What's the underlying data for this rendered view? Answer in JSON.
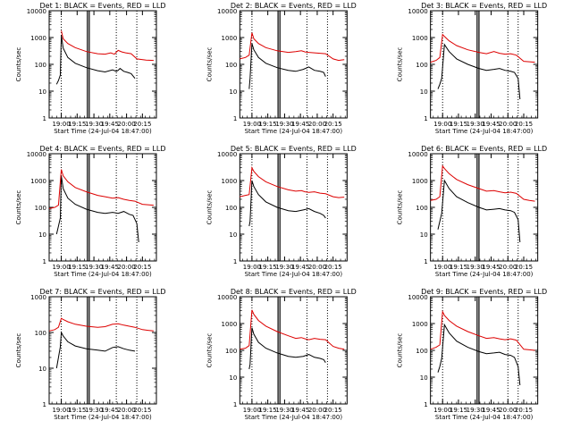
{
  "layout": {
    "columns": 3,
    "rows": 3
  },
  "chart_data": [
    {
      "type": "line",
      "yscale": "log",
      "ylim": [
        1,
        10000
      ],
      "title": "Det 1: BLACK = Events, RED = LLD",
      "xlabel": "Start Time (24-Jul-04 18:47:00)",
      "ylabel": "Counts/sec",
      "x_ticks": [
        "19:00",
        "19:15",
        "19:30",
        "19:45",
        "20:00",
        "20:15"
      ],
      "y_ticks": [
        "1",
        "10",
        "100",
        "1000",
        "10000"
      ],
      "series": [
        {
          "color": "#000000",
          "x": [
            8,
            10,
            12,
            13,
            15,
            20,
            28,
            40,
            52,
            60,
            68,
            72,
            74,
            76,
            80,
            84,
            88,
            92
          ],
          "y": [
            18,
            25,
            40,
            1200,
            400,
            180,
            110,
            75,
            58,
            52,
            62,
            55,
            60,
            70,
            55,
            50,
            45,
            30
          ]
        },
        {
          "color": "#dd0000",
          "x": [
            13,
            15,
            20,
            28,
            40,
            52,
            60,
            66,
            70,
            74,
            78,
            82,
            88,
            94,
            104,
            112
          ],
          "y": [
            1800,
            900,
            600,
            420,
            300,
            250,
            240,
            270,
            240,
            330,
            290,
            270,
            250,
            160,
            145,
            140
          ]
        }
      ],
      "vlines_solid": [
        41,
        43
      ],
      "vlines_dotted": [
        13,
        72,
        94
      ]
    },
    {
      "type": "line",
      "yscale": "log",
      "ylim": [
        1,
        10000
      ],
      "title": "Det 2: BLACK = Events, RED = LLD",
      "xlabel": "Start Time (24-Jul-04 18:47:00)",
      "ylabel": "Counts/sec",
      "x_ticks": [
        "19:00",
        "19:15",
        "19:30",
        "19:45",
        "20:00",
        "20:15"
      ],
      "y_ticks": [
        "1",
        "10",
        "100",
        "1000",
        "10000"
      ],
      "series": [
        {
          "color": "#000000",
          "x": [
            10,
            11,
            13,
            15,
            20,
            28,
            40,
            52,
            60,
            68,
            74,
            80,
            86,
            90,
            92
          ],
          "y": [
            12,
            30,
            600,
            350,
            180,
            110,
            75,
            60,
            55,
            65,
            80,
            60,
            55,
            50,
            35
          ]
        },
        {
          "color": "#dd0000",
          "x": [
            0,
            6,
            10,
            13,
            15,
            20,
            28,
            40,
            52,
            60,
            66,
            70,
            74,
            80,
            86,
            92,
            100,
            106,
            112
          ],
          "y": [
            160,
            180,
            220,
            1500,
            900,
            600,
            420,
            320,
            280,
            300,
            320,
            290,
            280,
            270,
            260,
            250,
            160,
            140,
            150
          ]
        }
      ],
      "vlines_solid": [
        41,
        43
      ],
      "vlines_dotted": [
        13,
        72,
        94
      ]
    },
    {
      "type": "line",
      "yscale": "log",
      "ylim": [
        1,
        10000
      ],
      "title": "Det 3: BLACK = Events, RED = LLD",
      "xlabel": "Start Time (24-Jul-04 18:47:00)",
      "ylabel": "Counts/sec",
      "x_ticks": [
        "19:00",
        "19:15",
        "19:30",
        "19:45",
        "20:00",
        "20:15"
      ],
      "y_ticks": [
        "1",
        "10",
        "100",
        "1000",
        "10000"
      ],
      "series": [
        {
          "color": "#000000",
          "x": [
            8,
            10,
            12,
            15,
            20,
            28,
            40,
            52,
            60,
            68,
            74,
            80,
            86,
            90,
            94,
            96
          ],
          "y": [
            12,
            18,
            30,
            550,
            300,
            160,
            100,
            70,
            60,
            65,
            70,
            60,
            55,
            50,
            30,
            5
          ]
        },
        {
          "color": "#dd0000",
          "x": [
            0,
            6,
            10,
            13,
            15,
            20,
            28,
            40,
            52,
            60,
            68,
            74,
            80,
            86,
            92,
            100,
            106,
            112
          ],
          "y": [
            120,
            140,
            180,
            1300,
            1100,
            750,
            500,
            350,
            280,
            250,
            300,
            260,
            240,
            250,
            220,
            130,
            125,
            120
          ]
        }
      ],
      "vlines_solid": [
        50,
        52
      ],
      "vlines_dotted": [
        13,
        83,
        94
      ]
    },
    {
      "type": "line",
      "yscale": "log",
      "ylim": [
        1,
        10000
      ],
      "title": "Det 4: BLACK = Events, RED = LLD",
      "xlabel": "Start Time (24-Jul-04 18:47:00)",
      "ylabel": "Counts/sec",
      "x_ticks": [
        "19:00",
        "19:15",
        "19:30",
        "19:45",
        "20:00",
        "20:15"
      ],
      "y_ticks": [
        "1",
        "10",
        "100",
        "1000",
        "10000"
      ],
      "series": [
        {
          "color": "#000000",
          "x": [
            8,
            10,
            12,
            13,
            15,
            20,
            28,
            40,
            52,
            60,
            68,
            74,
            80,
            86,
            90,
            94,
            96
          ],
          "y": [
            10,
            20,
            40,
            1500,
            500,
            220,
            130,
            85,
            65,
            60,
            65,
            60,
            70,
            55,
            50,
            25,
            5
          ]
        },
        {
          "color": "#dd0000",
          "x": [
            0,
            6,
            10,
            13,
            15,
            20,
            28,
            40,
            52,
            60,
            68,
            74,
            80,
            86,
            92,
            100,
            106,
            112
          ],
          "y": [
            90,
            100,
            120,
            2600,
            1500,
            900,
            550,
            380,
            280,
            250,
            220,
            230,
            200,
            180,
            170,
            130,
            125,
            120
          ]
        }
      ],
      "vlines_solid": [
        41,
        43
      ],
      "vlines_dotted": [
        13,
        72,
        94
      ]
    },
    {
      "type": "line",
      "yscale": "log",
      "ylim": [
        1,
        10000
      ],
      "title": "Det 5: BLACK = Events, RED = LLD",
      "xlabel": "Start Time (24-Jul-04 18:47:00)",
      "ylabel": "Counts/sec",
      "x_ticks": [
        "19:00",
        "19:15",
        "19:30",
        "19:45",
        "20:00",
        "20:15"
      ],
      "y_ticks": [
        "1",
        "10",
        "100",
        "1000",
        "10000"
      ],
      "series": [
        {
          "color": "#000000",
          "x": [
            10,
            11,
            13,
            15,
            20,
            28,
            40,
            52,
            60,
            68,
            74,
            80,
            86,
            90,
            92
          ],
          "y": [
            20,
            30,
            1000,
            600,
            300,
            160,
            100,
            75,
            70,
            80,
            90,
            70,
            60,
            50,
            40
          ]
        },
        {
          "color": "#dd0000",
          "x": [
            0,
            6,
            10,
            13,
            15,
            20,
            28,
            40,
            52,
            60,
            66,
            70,
            74,
            80,
            86,
            92,
            100,
            106,
            112
          ],
          "y": [
            250,
            280,
            300,
            3000,
            2200,
            1400,
            900,
            600,
            450,
            400,
            420,
            380,
            360,
            380,
            340,
            320,
            250,
            230,
            240
          ]
        }
      ],
      "vlines_solid": [
        41,
        43
      ],
      "vlines_dotted": [
        13,
        72,
        94
      ]
    },
    {
      "type": "line",
      "yscale": "log",
      "ylim": [
        1,
        10000
      ],
      "title": "Det 6: BLACK = Events, RED = LLD",
      "xlabel": "Start Time (24-Jul-04 18:47:00)",
      "ylabel": "Counts/sec",
      "x_ticks": [
        "19:00",
        "19:15",
        "19:30",
        "19:45",
        "20:00",
        "20:15"
      ],
      "y_ticks": [
        "1",
        "10",
        "100",
        "1000",
        "10000"
      ],
      "series": [
        {
          "color": "#000000",
          "x": [
            8,
            10,
            12,
            15,
            20,
            28,
            40,
            52,
            60,
            68,
            74,
            80,
            86,
            90,
            94,
            96
          ],
          "y": [
            15,
            30,
            60,
            1000,
            500,
            250,
            150,
            100,
            80,
            85,
            90,
            80,
            75,
            65,
            35,
            5
          ]
        },
        {
          "color": "#dd0000",
          "x": [
            0,
            6,
            10,
            13,
            15,
            20,
            28,
            40,
            52,
            60,
            68,
            74,
            80,
            86,
            92,
            100,
            106,
            112
          ],
          "y": [
            180,
            200,
            250,
            3500,
            2800,
            1800,
            1100,
            700,
            500,
            400,
            420,
            380,
            350,
            370,
            330,
            200,
            180,
            170
          ]
        }
      ],
      "vlines_solid": [
        50,
        52
      ],
      "vlines_dotted": [
        13,
        83,
        94
      ]
    },
    {
      "type": "line",
      "yscale": "log",
      "ylim": [
        1,
        1000
      ],
      "title": "Det 7: BLACK = Events, RED = LLD",
      "xlabel": "Start Time (24-Jul-04 18:47:00)",
      "ylabel": "Counts/sec",
      "x_ticks": [
        "19:00",
        "19:15",
        "19:30",
        "19:45",
        "20:00",
        "20:15"
      ],
      "y_ticks": [
        "1",
        "10",
        "100",
        "1000"
      ],
      "series": [
        {
          "color": "#000000",
          "x": [
            8,
            10,
            12,
            13,
            15,
            20,
            28,
            40,
            52,
            60,
            68,
            74,
            80,
            86,
            92
          ],
          "y": [
            10,
            20,
            40,
            100,
            80,
            55,
            42,
            35,
            32,
            30,
            38,
            40,
            35,
            32,
            30
          ]
        },
        {
          "color": "#dd0000",
          "x": [
            0,
            6,
            10,
            13,
            15,
            20,
            28,
            40,
            52,
            60,
            68,
            74,
            80,
            86,
            92,
            100,
            106,
            112
          ],
          "y": [
            110,
            120,
            140,
            250,
            230,
            200,
            170,
            150,
            140,
            145,
            170,
            175,
            160,
            150,
            140,
            120,
            115,
            110
          ]
        }
      ],
      "vlines_solid": [
        41,
        43
      ],
      "vlines_dotted": [
        13,
        72,
        94
      ]
    },
    {
      "type": "line",
      "yscale": "log",
      "ylim": [
        1,
        10000
      ],
      "title": "Det 8: BLACK = Events, RED = LLD",
      "xlabel": "Start Time (24-Jul-04 18:47:00)",
      "ylabel": "Counts/sec",
      "x_ticks": [
        "19:00",
        "19:15",
        "19:30",
        "19:45",
        "20:00",
        "20:15"
      ],
      "y_ticks": [
        "1",
        "10",
        "100",
        "1000",
        "10000"
      ],
      "series": [
        {
          "color": "#000000",
          "x": [
            10,
            11,
            13,
            15,
            20,
            28,
            40,
            52,
            60,
            68,
            74,
            80,
            86,
            90,
            92
          ],
          "y": [
            20,
            30,
            700,
            400,
            200,
            120,
            80,
            60,
            55,
            60,
            70,
            55,
            50,
            45,
            35
          ]
        },
        {
          "color": "#dd0000",
          "x": [
            0,
            6,
            10,
            13,
            15,
            20,
            28,
            40,
            52,
            60,
            66,
            70,
            74,
            80,
            86,
            92,
            100,
            106,
            112
          ],
          "y": [
            110,
            120,
            150,
            3200,
            2200,
            1300,
            800,
            500,
            350,
            280,
            300,
            270,
            250,
            280,
            260,
            250,
            140,
            120,
            110
          ]
        }
      ],
      "vlines_solid": [
        41,
        43
      ],
      "vlines_dotted": [
        13,
        72,
        94
      ]
    },
    {
      "type": "line",
      "yscale": "log",
      "ylim": [
        1,
        10000
      ],
      "title": "Det 9: BLACK = Events, RED = LLD",
      "xlabel": "Start Time (24-Jul-04 18:47:00)",
      "ylabel": "Counts/sec",
      "x_ticks": [
        "19:00",
        "19:15",
        "19:30",
        "19:45",
        "20:00",
        "20:15"
      ],
      "y_ticks": [
        "1",
        "10",
        "100",
        "1000",
        "10000"
      ],
      "series": [
        {
          "color": "#000000",
          "x": [
            8,
            10,
            12,
            15,
            20,
            28,
            40,
            52,
            60,
            68,
            74,
            80,
            86,
            90,
            94,
            96
          ],
          "y": [
            15,
            25,
            50,
            900,
            450,
            220,
            130,
            90,
            75,
            80,
            85,
            70,
            65,
            55,
            25,
            5
          ]
        },
        {
          "color": "#dd0000",
          "x": [
            0,
            6,
            10,
            13,
            15,
            20,
            28,
            40,
            52,
            60,
            68,
            74,
            80,
            86,
            92,
            100,
            106,
            112
          ],
          "y": [
            110,
            130,
            160,
            2800,
            2000,
            1300,
            800,
            500,
            350,
            280,
            300,
            270,
            250,
            270,
            240,
            110,
            105,
            100
          ]
        }
      ],
      "vlines_solid": [
        50,
        52
      ],
      "vlines_dotted": [
        13,
        83,
        94
      ]
    }
  ]
}
